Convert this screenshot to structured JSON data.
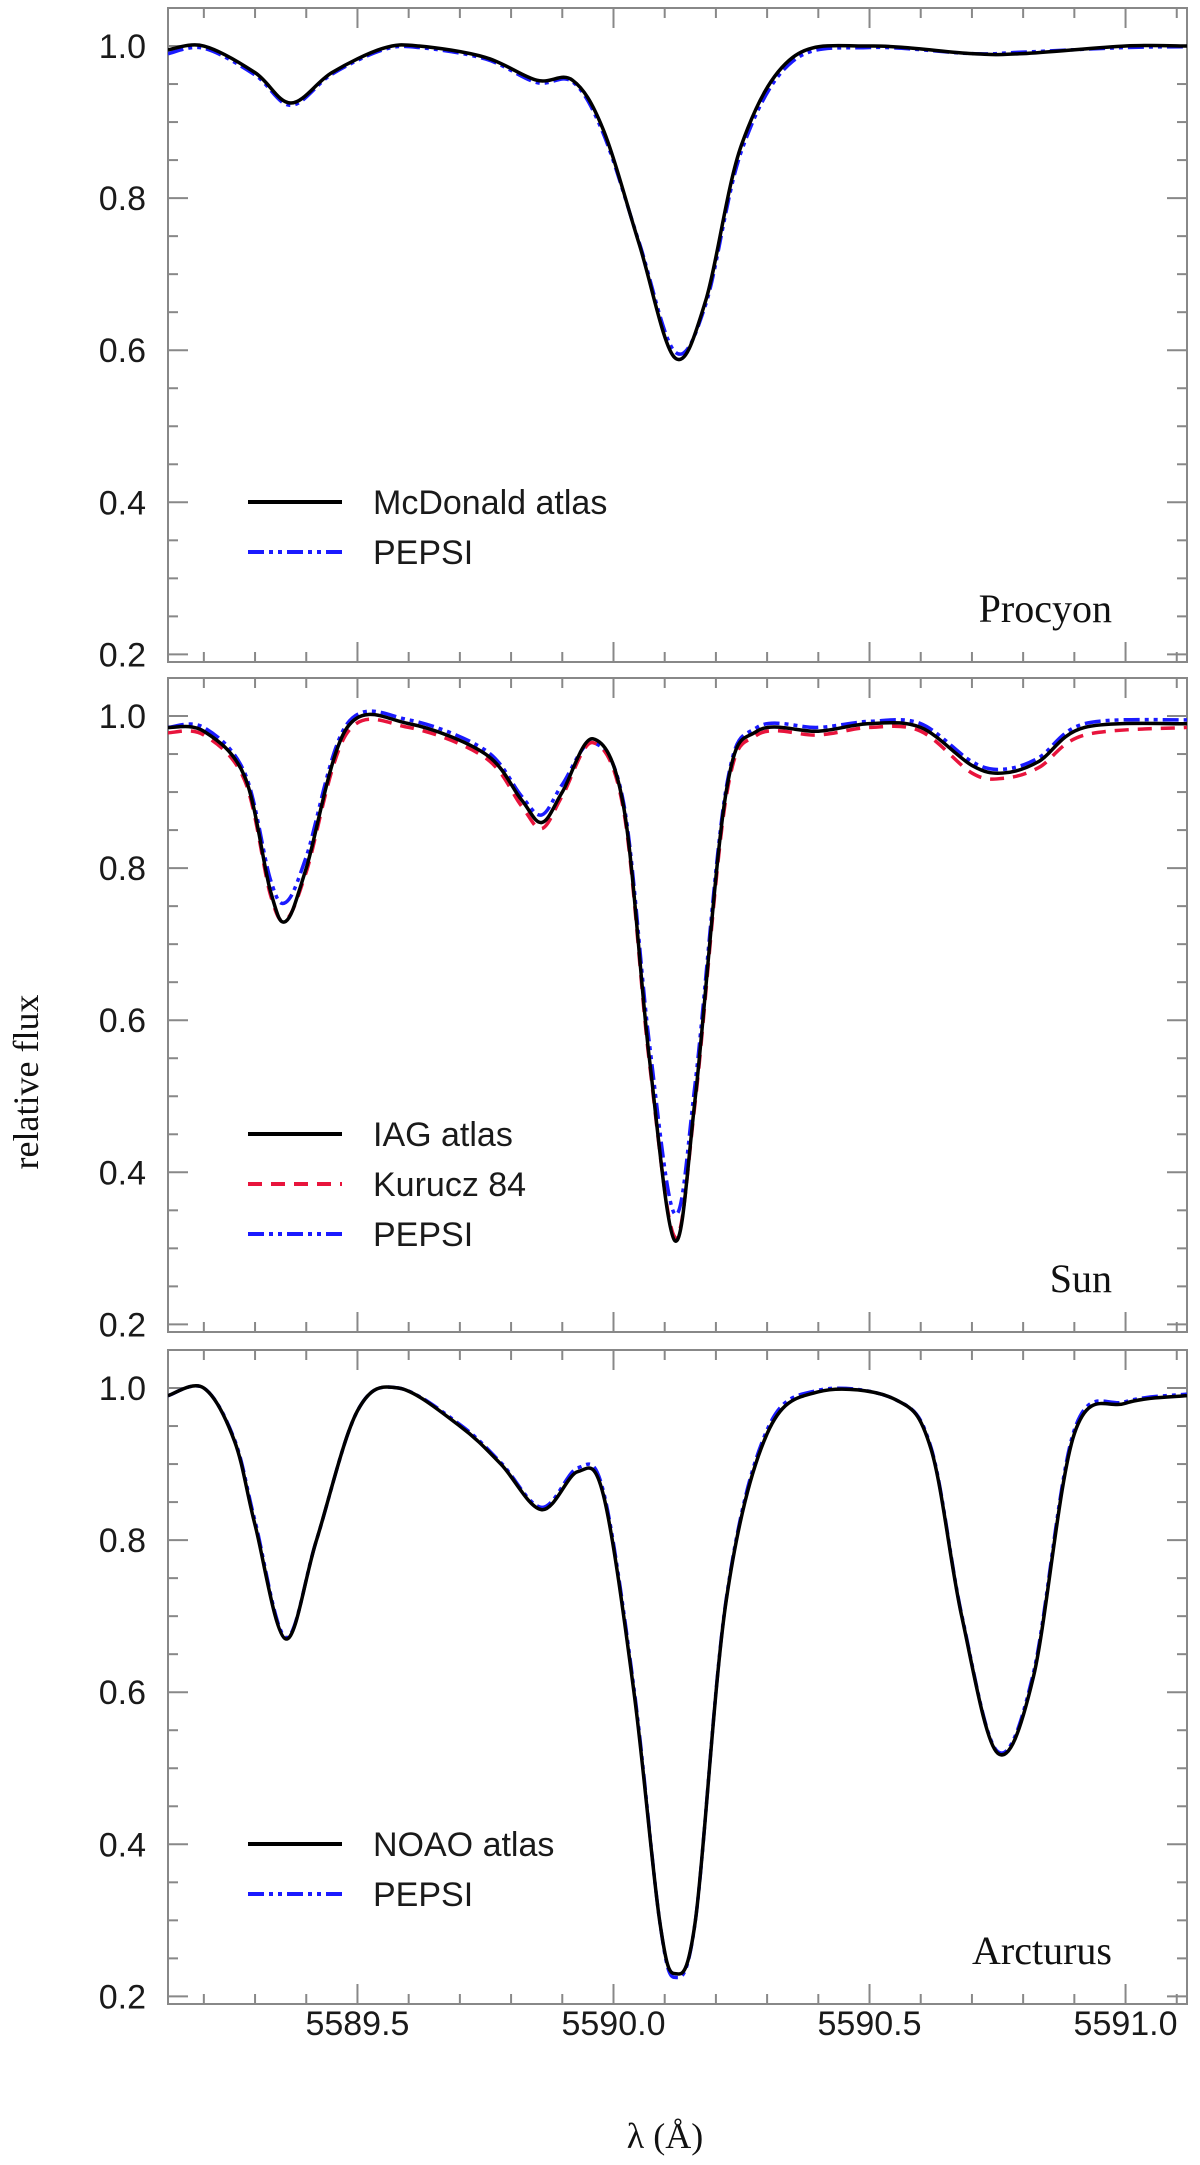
{
  "figure": {
    "ylabel": "relative flux",
    "xlabel": "λ (Å)",
    "xlim": [
      5589.13,
      5591.12
    ],
    "xticks": [
      5589.5,
      5590.0,
      5590.5,
      5591.0
    ],
    "xtick_labels": [
      "5589.5",
      "5590.0",
      "5590.5",
      "5591.0"
    ]
  },
  "colors": {
    "atlas": "#000000",
    "kurucz": "#e8143c",
    "pepsi": "#1a1aff"
  },
  "chart_data": [
    {
      "type": "line",
      "star": "Procyon",
      "ylim": [
        0.19,
        1.05
      ],
      "yticks": [
        0.2,
        0.4,
        0.6,
        0.8,
        1.0
      ],
      "ytick_labels": [
        "0.2",
        "0.4",
        "0.6",
        "0.8",
        "1.0"
      ],
      "legend_position": "lower-left",
      "series": [
        {
          "name": "McDonald atlas",
          "style": "solid",
          "color": "#000000",
          "x": [
            5589.13,
            5589.2,
            5589.3,
            5589.37,
            5589.45,
            5589.55,
            5589.62,
            5589.75,
            5589.85,
            5589.92,
            5589.98,
            5590.05,
            5590.12,
            5590.18,
            5590.25,
            5590.35,
            5590.5,
            5590.7,
            5590.8,
            5591.0,
            5591.12
          ],
          "y": [
            0.995,
            1.0,
            0.965,
            0.925,
            0.965,
            0.997,
            1.0,
            0.985,
            0.955,
            0.955,
            0.89,
            0.74,
            0.59,
            0.665,
            0.87,
            0.985,
            1.0,
            0.99,
            0.99,
            1.0,
            1.0
          ]
        },
        {
          "name": "PEPSI",
          "style": "dash-dot-dot",
          "color": "#1a1aff",
          "x": [
            5589.13,
            5589.2,
            5589.3,
            5589.37,
            5589.45,
            5589.55,
            5589.62,
            5589.75,
            5589.85,
            5589.92,
            5589.98,
            5590.05,
            5590.12,
            5590.18,
            5590.25,
            5590.35,
            5590.5,
            5590.7,
            5590.8,
            5591.0,
            5591.12
          ],
          "y": [
            0.99,
            0.997,
            0.962,
            0.922,
            0.963,
            0.995,
            0.998,
            0.983,
            0.952,
            0.953,
            0.885,
            0.742,
            0.598,
            0.66,
            0.862,
            0.98,
            0.998,
            0.99,
            0.992,
            0.998,
            0.999
          ]
        }
      ]
    },
    {
      "type": "line",
      "star": "Sun",
      "ylim": [
        0.19,
        1.05
      ],
      "yticks": [
        0.2,
        0.4,
        0.6,
        0.8,
        1.0
      ],
      "ytick_labels": [
        "0.2",
        "0.4",
        "0.6",
        "0.8",
        "1.0"
      ],
      "legend_position": "lower-left",
      "series": [
        {
          "name": "IAG atlas",
          "style": "solid",
          "color": "#000000",
          "x": [
            5589.13,
            5589.2,
            5589.28,
            5589.33,
            5589.36,
            5589.4,
            5589.48,
            5589.6,
            5589.75,
            5589.82,
            5589.86,
            5589.9,
            5589.96,
            5590.02,
            5590.07,
            5590.12,
            5590.16,
            5590.22,
            5590.28,
            5590.4,
            5590.5,
            5590.6,
            5590.7,
            5590.76,
            5590.83,
            5590.92,
            5591.12
          ],
          "y": [
            0.985,
            0.98,
            0.92,
            0.77,
            0.73,
            0.8,
            0.985,
            0.99,
            0.95,
            0.89,
            0.86,
            0.9,
            0.97,
            0.88,
            0.55,
            0.31,
            0.5,
            0.9,
            0.98,
            0.98,
            0.99,
            0.985,
            0.935,
            0.925,
            0.94,
            0.985,
            0.99
          ]
        },
        {
          "name": "Kurucz 84",
          "style": "dashed",
          "color": "#e8143c",
          "x": [
            5589.13,
            5589.2,
            5589.28,
            5589.33,
            5589.36,
            5589.4,
            5589.48,
            5589.6,
            5589.75,
            5589.82,
            5589.86,
            5589.9,
            5589.96,
            5590.02,
            5590.07,
            5590.12,
            5590.16,
            5590.22,
            5590.28,
            5590.4,
            5590.5,
            5590.6,
            5590.7,
            5590.76,
            5590.83,
            5590.92,
            5591.12
          ],
          "y": [
            0.978,
            0.975,
            0.915,
            0.765,
            0.732,
            0.795,
            0.978,
            0.985,
            0.945,
            0.882,
            0.852,
            0.895,
            0.965,
            0.875,
            0.545,
            0.315,
            0.495,
            0.893,
            0.975,
            0.975,
            0.985,
            0.98,
            0.925,
            0.918,
            0.932,
            0.975,
            0.985
          ]
        },
        {
          "name": "PEPSI",
          "style": "dash-dot-dot",
          "color": "#1a1aff",
          "x": [
            5589.13,
            5589.2,
            5589.28,
            5589.33,
            5589.36,
            5589.4,
            5589.48,
            5589.6,
            5589.75,
            5589.82,
            5589.86,
            5589.9,
            5589.96,
            5590.02,
            5590.07,
            5590.12,
            5590.16,
            5590.22,
            5590.28,
            5590.4,
            5590.5,
            5590.6,
            5590.7,
            5590.76,
            5590.83,
            5590.92,
            5591.12
          ],
          "y": [
            0.985,
            0.985,
            0.925,
            0.785,
            0.755,
            0.815,
            0.99,
            0.995,
            0.955,
            0.895,
            0.87,
            0.91,
            0.965,
            0.885,
            0.57,
            0.345,
            0.52,
            0.905,
            0.985,
            0.985,
            0.993,
            0.99,
            0.94,
            0.93,
            0.945,
            0.99,
            0.995
          ]
        }
      ]
    },
    {
      "type": "line",
      "star": "Arcturus",
      "ylim": [
        0.19,
        1.05
      ],
      "yticks": [
        0.2,
        0.4,
        0.6,
        0.8,
        1.0
      ],
      "ytick_labels": [
        "0.2",
        "0.4",
        "0.6",
        "0.8",
        "1.0"
      ],
      "legend_position": "lower-left",
      "series": [
        {
          "name": "NOAO atlas",
          "style": "solid",
          "color": "#000000",
          "x": [
            5589.13,
            5589.2,
            5589.26,
            5589.3,
            5589.36,
            5589.42,
            5589.5,
            5589.58,
            5589.7,
            5589.78,
            5589.86,
            5589.93,
            5589.98,
            5590.04,
            5590.09,
            5590.12,
            5590.16,
            5590.22,
            5590.3,
            5590.4,
            5590.55,
            5590.62,
            5590.68,
            5590.75,
            5590.82,
            5590.9,
            5591.0,
            5591.12
          ],
          "y": [
            0.99,
            1.0,
            0.93,
            0.82,
            0.67,
            0.8,
            0.97,
            1.0,
            0.95,
            0.9,
            0.84,
            0.89,
            0.86,
            0.6,
            0.3,
            0.23,
            0.3,
            0.72,
            0.94,
            0.995,
            0.985,
            0.92,
            0.7,
            0.52,
            0.62,
            0.94,
            0.98,
            0.99
          ]
        },
        {
          "name": "PEPSI",
          "style": "dash-dot-dot",
          "color": "#1a1aff",
          "x": [
            5589.13,
            5589.2,
            5589.26,
            5589.3,
            5589.36,
            5589.42,
            5589.5,
            5589.58,
            5589.7,
            5589.78,
            5589.86,
            5589.93,
            5589.98,
            5590.04,
            5590.09,
            5590.12,
            5590.16,
            5590.22,
            5590.3,
            5590.4,
            5590.55,
            5590.62,
            5590.68,
            5590.75,
            5590.82,
            5590.9,
            5591.0,
            5591.12
          ],
          "y": [
            0.99,
            1.0,
            0.932,
            0.825,
            0.672,
            0.8,
            0.97,
            1.0,
            0.952,
            0.902,
            0.843,
            0.895,
            0.865,
            0.605,
            0.3,
            0.225,
            0.3,
            0.722,
            0.945,
            0.997,
            0.985,
            0.922,
            0.702,
            0.522,
            0.625,
            0.945,
            0.982,
            0.992
          ]
        }
      ]
    }
  ]
}
